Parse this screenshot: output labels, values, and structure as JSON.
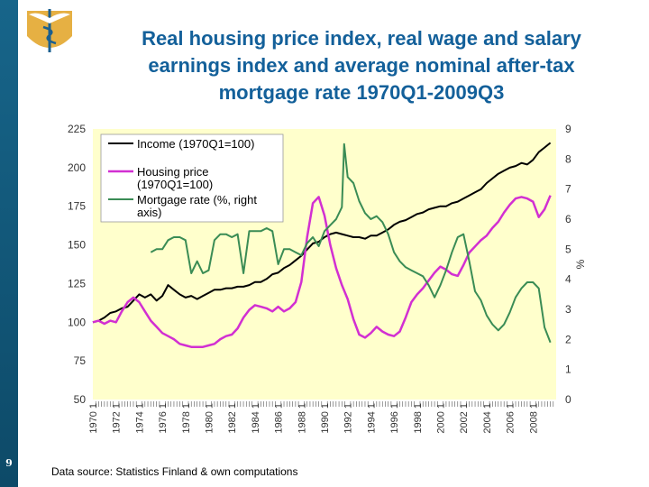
{
  "slide": {
    "number": "9",
    "title_lines": [
      "Real housing price index, real wage and salary",
      "earnings index and average nominal after-tax",
      "mortgage rate 1970Q1-2009Q3"
    ],
    "source": "Data source: Statistics Finland & own computations",
    "colors": {
      "sidebar": "#17658a",
      "title": "#13609a",
      "logo": "#e3a72f"
    },
    "logo_icon": "caduceus-logo-icon"
  },
  "chart_data": {
    "type": "line",
    "title": "",
    "xlabel": "",
    "ylabel": "",
    "y2label": "%",
    "ylim": [
      50,
      225
    ],
    "y2lim": [
      0,
      9
    ],
    "yticks": [
      "50",
      "75",
      "100",
      "125",
      "150",
      "175",
      "200",
      "225"
    ],
    "y2ticks": [
      "0",
      "1",
      "2",
      "3",
      "4",
      "5",
      "6",
      "7",
      "8",
      "9"
    ],
    "xlim": [
      1970.0,
      2010.0
    ],
    "xticks": [
      {
        "label": "1970 1",
        "x": 1970.0
      },
      {
        "label": "1972 1",
        "x": 1972.0
      },
      {
        "label": "1974 1",
        "x": 1974.0
      },
      {
        "label": "1976 1",
        "x": 1976.0
      },
      {
        "label": "1978 1",
        "x": 1978.0
      },
      {
        "label": "1980 1",
        "x": 1980.0
      },
      {
        "label": "1982 1",
        "x": 1982.0
      },
      {
        "label": "1984 1",
        "x": 1984.0
      },
      {
        "label": "1986 1",
        "x": 1986.0
      },
      {
        "label": "1988 1",
        "x": 1988.0
      },
      {
        "label": "1990 1",
        "x": 1990.0
      },
      {
        "label": "1992 1",
        "x": 1992.0
      },
      {
        "label": "1994 1",
        "x": 1994.0
      },
      {
        "label": "1996 1",
        "x": 1996.0
      },
      {
        "label": "1998 1",
        "x": 1998.0
      },
      {
        "label": "2000 1",
        "x": 2000.0
      },
      {
        "label": "2002 1",
        "x": 2002.0
      },
      {
        "label": "2004 1",
        "x": 2004.0
      },
      {
        "label": "2006 1",
        "x": 2006.0
      },
      {
        "label": "2008 1",
        "x": 2008.0
      }
    ],
    "grid": false,
    "plot_background": "#ffffcc",
    "legend": {
      "placement": "top-left",
      "entries": [
        {
          "label": "Income (1970Q1=100)",
          "series": 0
        },
        {
          "label": "Housing price (1970Q1=100)",
          "lines": [
            "Housing price",
            "(1970Q1=100)"
          ],
          "series": 1
        },
        {
          "label": "Mortgage rate (%, right axis)",
          "lines": [
            "Mortgage rate (%, right",
            "axis)"
          ],
          "series": 2
        }
      ]
    },
    "series": [
      {
        "name": "Income (1970Q1=100)",
        "axis": "left",
        "color": "#000000",
        "points": [
          [
            1970.0,
            100
          ],
          [
            1970.5,
            101
          ],
          [
            1971.0,
            103
          ],
          [
            1971.5,
            106
          ],
          [
            1972.0,
            107
          ],
          [
            1972.5,
            109
          ],
          [
            1973.0,
            110
          ],
          [
            1973.5,
            114
          ],
          [
            1974.0,
            118
          ],
          [
            1974.5,
            116
          ],
          [
            1975.0,
            118
          ],
          [
            1975.5,
            114
          ],
          [
            1976.0,
            117
          ],
          [
            1976.5,
            124
          ],
          [
            1977.0,
            121
          ],
          [
            1977.5,
            118
          ],
          [
            1978.0,
            116
          ],
          [
            1978.5,
            117
          ],
          [
            1979.0,
            115
          ],
          [
            1979.5,
            117
          ],
          [
            1980.0,
            119
          ],
          [
            1980.5,
            121
          ],
          [
            1981.0,
            121
          ],
          [
            1981.5,
            122
          ],
          [
            1982.0,
            122
          ],
          [
            1982.5,
            123
          ],
          [
            1983.0,
            123
          ],
          [
            1983.5,
            124
          ],
          [
            1984.0,
            126
          ],
          [
            1984.5,
            126
          ],
          [
            1985.0,
            128
          ],
          [
            1985.5,
            131
          ],
          [
            1986.0,
            132
          ],
          [
            1986.5,
            135
          ],
          [
            1987.0,
            137
          ],
          [
            1987.5,
            140
          ],
          [
            1988.0,
            143
          ],
          [
            1988.5,
            147
          ],
          [
            1989.0,
            151
          ],
          [
            1989.5,
            152
          ],
          [
            1990.0,
            155
          ],
          [
            1990.5,
            157
          ],
          [
            1991.0,
            158
          ],
          [
            1991.5,
            157
          ],
          [
            1992.0,
            156
          ],
          [
            1992.5,
            155
          ],
          [
            1993.0,
            155
          ],
          [
            1993.5,
            154
          ],
          [
            1994.0,
            156
          ],
          [
            1994.5,
            156
          ],
          [
            1995.0,
            158
          ],
          [
            1995.5,
            160
          ],
          [
            1996.0,
            163
          ],
          [
            1996.5,
            165
          ],
          [
            1997.0,
            166
          ],
          [
            1997.5,
            168
          ],
          [
            1998.0,
            170
          ],
          [
            1998.5,
            171
          ],
          [
            1999.0,
            173
          ],
          [
            1999.5,
            174
          ],
          [
            2000.0,
            175
          ],
          [
            2000.5,
            175
          ],
          [
            2001.0,
            177
          ],
          [
            2001.5,
            178
          ],
          [
            2002.0,
            180
          ],
          [
            2002.5,
            182
          ],
          [
            2003.0,
            184
          ],
          [
            2003.5,
            186
          ],
          [
            2004.0,
            190
          ],
          [
            2004.5,
            193
          ],
          [
            2005.0,
            196
          ],
          [
            2005.5,
            198
          ],
          [
            2006.0,
            200
          ],
          [
            2006.5,
            201
          ],
          [
            2007.0,
            203
          ],
          [
            2007.5,
            202
          ],
          [
            2008.0,
            205
          ],
          [
            2008.5,
            210
          ],
          [
            2009.0,
            213
          ],
          [
            2009.5,
            216
          ]
        ]
      },
      {
        "name": "Housing price (1970Q1=100)",
        "axis": "left",
        "color": "#d22fd2",
        "points": [
          [
            1970.0,
            100
          ],
          [
            1970.5,
            101
          ],
          [
            1971.0,
            99
          ],
          [
            1971.5,
            101
          ],
          [
            1972.0,
            100
          ],
          [
            1972.5,
            107
          ],
          [
            1973.0,
            113
          ],
          [
            1973.5,
            116
          ],
          [
            1974.0,
            113
          ],
          [
            1974.5,
            107
          ],
          [
            1975.0,
            101
          ],
          [
            1975.5,
            97
          ],
          [
            1976.0,
            93
          ],
          [
            1976.5,
            91
          ],
          [
            1977.0,
            89
          ],
          [
            1977.5,
            86
          ],
          [
            1978.0,
            85
          ],
          [
            1978.5,
            84
          ],
          [
            1979.0,
            84
          ],
          [
            1979.5,
            84
          ],
          [
            1980.0,
            85
          ],
          [
            1980.5,
            86
          ],
          [
            1981.0,
            89
          ],
          [
            1981.5,
            91
          ],
          [
            1982.0,
            92
          ],
          [
            1982.5,
            96
          ],
          [
            1983.0,
            103
          ],
          [
            1983.5,
            108
          ],
          [
            1984.0,
            111
          ],
          [
            1984.5,
            110
          ],
          [
            1985.0,
            109
          ],
          [
            1985.5,
            107
          ],
          [
            1986.0,
            110
          ],
          [
            1986.5,
            107
          ],
          [
            1987.0,
            109
          ],
          [
            1987.5,
            113
          ],
          [
            1988.0,
            126
          ],
          [
            1988.5,
            155
          ],
          [
            1989.0,
            177
          ],
          [
            1989.5,
            181
          ],
          [
            1990.0,
            169
          ],
          [
            1990.5,
            150
          ],
          [
            1991.0,
            135
          ],
          [
            1991.5,
            124
          ],
          [
            1992.0,
            115
          ],
          [
            1992.5,
            102
          ],
          [
            1993.0,
            92
          ],
          [
            1993.5,
            90
          ],
          [
            1994.0,
            93
          ],
          [
            1994.5,
            97
          ],
          [
            1995.0,
            94
          ],
          [
            1995.5,
            92
          ],
          [
            1996.0,
            91
          ],
          [
            1996.5,
            94
          ],
          [
            1997.0,
            103
          ],
          [
            1997.5,
            113
          ],
          [
            1998.0,
            118
          ],
          [
            1998.5,
            122
          ],
          [
            1999.0,
            127
          ],
          [
            1999.5,
            132
          ],
          [
            2000.0,
            136
          ],
          [
            2000.5,
            134
          ],
          [
            2001.0,
            131
          ],
          [
            2001.5,
            130
          ],
          [
            2002.0,
            137
          ],
          [
            2002.5,
            145
          ],
          [
            2003.0,
            149
          ],
          [
            2003.5,
            153
          ],
          [
            2004.0,
            156
          ],
          [
            2004.5,
            161
          ],
          [
            2005.0,
            165
          ],
          [
            2005.5,
            171
          ],
          [
            2006.0,
            176
          ],
          [
            2006.5,
            180
          ],
          [
            2007.0,
            181
          ],
          [
            2007.5,
            180
          ],
          [
            2008.0,
            178
          ],
          [
            2008.5,
            168
          ],
          [
            2009.0,
            173
          ],
          [
            2009.5,
            182
          ]
        ]
      },
      {
        "name": "Mortgage rate (%, right axis)",
        "axis": "right",
        "color": "#3a8c55",
        "points": [
          [
            1975.0,
            4.9
          ],
          [
            1975.5,
            5.0
          ],
          [
            1976.0,
            5.0
          ],
          [
            1976.5,
            5.3
          ],
          [
            1977.0,
            5.4
          ],
          [
            1977.5,
            5.4
          ],
          [
            1978.0,
            5.3
          ],
          [
            1978.5,
            4.2
          ],
          [
            1979.0,
            4.6
          ],
          [
            1979.5,
            4.2
          ],
          [
            1980.0,
            4.3
          ],
          [
            1980.5,
            5.3
          ],
          [
            1981.0,
            5.5
          ],
          [
            1981.5,
            5.5
          ],
          [
            1982.0,
            5.4
          ],
          [
            1982.5,
            5.5
          ],
          [
            1983.0,
            4.2
          ],
          [
            1983.5,
            5.6
          ],
          [
            1984.0,
            5.6
          ],
          [
            1984.5,
            5.6
          ],
          [
            1985.0,
            5.7
          ],
          [
            1985.5,
            5.6
          ],
          [
            1986.0,
            4.5
          ],
          [
            1986.5,
            5.0
          ],
          [
            1987.0,
            5.0
          ],
          [
            1987.5,
            4.9
          ],
          [
            1988.0,
            4.8
          ],
          [
            1988.5,
            5.2
          ],
          [
            1989.0,
            5.4
          ],
          [
            1989.5,
            5.1
          ],
          [
            1990.0,
            5.6
          ],
          [
            1990.5,
            5.8
          ],
          [
            1991.0,
            6.0
          ],
          [
            1991.5,
            6.4
          ],
          [
            1991.7,
            8.5
          ],
          [
            1992.0,
            7.4
          ],
          [
            1992.5,
            7.2
          ],
          [
            1993.0,
            6.6
          ],
          [
            1993.5,
            6.2
          ],
          [
            1994.0,
            6.0
          ],
          [
            1994.5,
            6.1
          ],
          [
            1995.0,
            5.9
          ],
          [
            1995.5,
            5.5
          ],
          [
            1996.0,
            4.9
          ],
          [
            1996.5,
            4.6
          ],
          [
            1997.0,
            4.4
          ],
          [
            1997.5,
            4.3
          ],
          [
            1998.0,
            4.2
          ],
          [
            1998.5,
            4.1
          ],
          [
            1999.0,
            3.8
          ],
          [
            1999.5,
            3.4
          ],
          [
            2000.0,
            3.8
          ],
          [
            2000.5,
            4.3
          ],
          [
            2001.0,
            4.9
          ],
          [
            2001.5,
            5.4
          ],
          [
            2002.0,
            5.5
          ],
          [
            2002.5,
            4.6
          ],
          [
            2003.0,
            3.6
          ],
          [
            2003.5,
            3.3
          ],
          [
            2004.0,
            2.8
          ],
          [
            2004.5,
            2.5
          ],
          [
            2005.0,
            2.3
          ],
          [
            2005.5,
            2.5
          ],
          [
            2006.0,
            2.9
          ],
          [
            2006.5,
            3.4
          ],
          [
            2007.0,
            3.7
          ],
          [
            2007.5,
            3.9
          ],
          [
            2008.0,
            3.9
          ],
          [
            2008.5,
            3.7
          ],
          [
            2009.0,
            2.4
          ],
          [
            2009.5,
            1.9
          ]
        ]
      }
    ]
  }
}
